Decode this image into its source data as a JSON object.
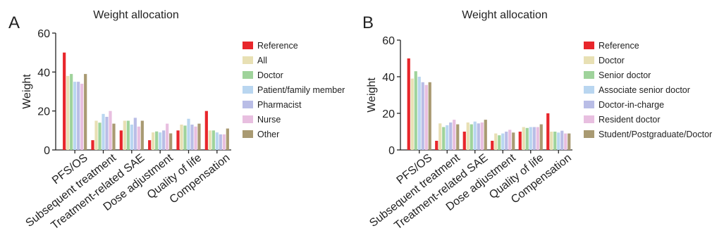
{
  "figure": {
    "panels": [
      {
        "letter": "A"
      },
      {
        "letter": "B"
      }
    ]
  },
  "chart_data": [
    {
      "type": "bar",
      "panel": "A",
      "title": "Weight allocation",
      "xlabel": "",
      "ylabel": "Weight",
      "ylim": [
        0,
        60
      ],
      "yticks": [
        0,
        20,
        40,
        60
      ],
      "grid": false,
      "legend_position": "right",
      "categories": [
        "PFS/OS",
        "Subsequent treatment",
        "Treatment-related SAE",
        "Dose adjustment",
        "Quality of life",
        "Compensation"
      ],
      "series": [
        {
          "name": "Reference",
          "color": "#e8262b",
          "values": [
            50,
            5,
            10,
            5,
            10,
            20
          ]
        },
        {
          "name": "All",
          "color": "#e8e0b4",
          "values": [
            38,
            15,
            15,
            9,
            13,
            10
          ]
        },
        {
          "name": "Doctor",
          "color": "#9fd39b",
          "values": [
            39,
            14,
            15,
            9.5,
            12.5,
            10
          ]
        },
        {
          "name": "Patient/family member",
          "color": "#b9d6f0",
          "values": [
            35,
            18.5,
            13,
            9,
            16,
            9
          ]
        },
        {
          "name": "Pharmacist",
          "color": "#b9bde6",
          "values": [
            35,
            17,
            16.5,
            10,
            13,
            8
          ]
        },
        {
          "name": "Nurse",
          "color": "#e8bfe0",
          "values": [
            34,
            20,
            12,
            13.5,
            12,
            8
          ]
        },
        {
          "name": "Other",
          "color": "#a99a72",
          "values": [
            39,
            13.5,
            15,
            8.5,
            13.5,
            11
          ]
        }
      ]
    },
    {
      "type": "bar",
      "panel": "B",
      "title": "Weight allocation",
      "xlabel": "",
      "ylabel": "Weight",
      "ylim": [
        0,
        60
      ],
      "yticks": [
        0,
        20,
        40,
        60
      ],
      "grid": false,
      "legend_position": "right",
      "categories": [
        "PFS/OS",
        "Subsequent treatment",
        "Treatment-related SAE",
        "Dose adjustment",
        "Quality of life",
        "Compensation"
      ],
      "series": [
        {
          "name": "Reference",
          "color": "#e8262b",
          "values": [
            50,
            5,
            10,
            5,
            10,
            20
          ]
        },
        {
          "name": "Doctor",
          "color": "#e8e0b4",
          "values": [
            39,
            14.5,
            15,
            9,
            12.5,
            10
          ]
        },
        {
          "name": "Senior doctor",
          "color": "#9fd39b",
          "values": [
            43,
            12.5,
            14,
            8,
            12,
            10
          ]
        },
        {
          "name": "Associate senior doctor",
          "color": "#b9d6f0",
          "values": [
            40,
            13.5,
            15.5,
            9,
            12.5,
            9.5
          ]
        },
        {
          "name": "Doctor-in-charge",
          "color": "#b9bde6",
          "values": [
            37,
            15,
            14.5,
            10,
            12.5,
            10.5
          ]
        },
        {
          "name": "Resident doctor",
          "color": "#e8bfe0",
          "values": [
            35.5,
            16.5,
            15,
            11,
            12.5,
            9
          ]
        },
        {
          "name": "Student/Postgraduate/Doctor",
          "color": "#a99a72",
          "values": [
            37,
            14,
            16.5,
            9.5,
            14,
            9
          ]
        }
      ]
    }
  ]
}
